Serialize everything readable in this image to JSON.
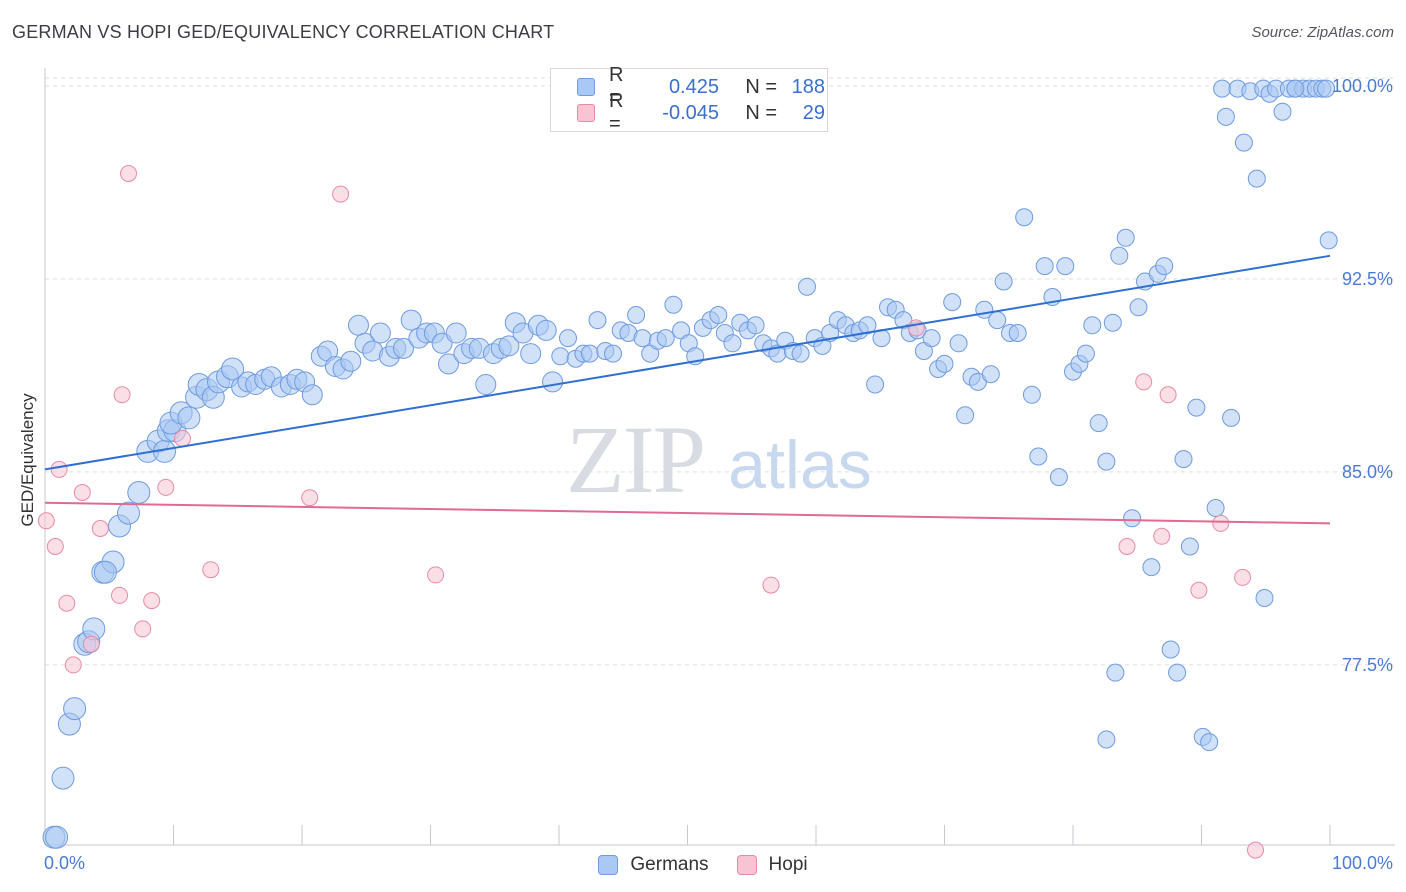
{
  "title": "GERMAN VS HOPI GED/EQUIVALENCY CORRELATION CHART",
  "source": "Source: ZipAtlas.com",
  "watermark": {
    "zip": "ZIP",
    "atlas": "atlas"
  },
  "legend_top": {
    "rows": [
      {
        "r_label": "R =",
        "r_value": "0.425",
        "n_label": "N =",
        "n_value": "188",
        "color": "#a9c8f3",
        "border": "#6f9be0"
      },
      {
        "r_label": "R =",
        "r_value": "-0.045",
        "n_label": "N =",
        "n_value": "29",
        "color": "#f7c4d3",
        "border": "#e88aa6"
      }
    ]
  },
  "legend_bottom": [
    {
      "label": "Germans",
      "color": "#a9c8f3",
      "border": "#6f9be0"
    },
    {
      "label": "Hopi",
      "color": "#f7c4d3",
      "border": "#e88aa6"
    }
  ],
  "chart_data": {
    "type": "scatter",
    "title": "GERMAN VS HOPI GED/EQUIVALENCY CORRELATION CHART",
    "xlabel": "",
    "ylabel": "GED/Equivalency",
    "xlim": [
      0,
      100
    ],
    "ylim": [
      70.5,
      100.7
    ],
    "x_tick_labels": [
      "0.0%",
      "100.0%"
    ],
    "y_ticks": [
      77.5,
      85.0,
      92.5,
      100.0
    ],
    "y_tick_labels": [
      "77.5%",
      "85.0%",
      "92.5%",
      "100.0%"
    ],
    "grid": "dashed horizontal",
    "legend_position": "top-center",
    "series": [
      {
        "name": "Germans",
        "color": "#6f9be0",
        "fill": "#a9c8f3",
        "trend": {
          "x": [
            0,
            100
          ],
          "y": [
            85.1,
            93.4
          ]
        },
        "points": [
          [
            0.7,
            70.8
          ],
          [
            0.9,
            70.8
          ],
          [
            1.4,
            73.1
          ],
          [
            1.9,
            75.2
          ],
          [
            2.3,
            75.8
          ],
          [
            3.1,
            78.3
          ],
          [
            3.4,
            78.4
          ],
          [
            3.8,
            78.9
          ],
          [
            4.5,
            81.1
          ],
          [
            5.3,
            81.5
          ],
          [
            4.7,
            81.1
          ],
          [
            5.8,
            82.9
          ],
          [
            6.5,
            83.4
          ],
          [
            7.3,
            84.2
          ],
          [
            8.0,
            85.8
          ],
          [
            8.8,
            86.2
          ],
          [
            9.3,
            85.8
          ],
          [
            9.6,
            86.6
          ],
          [
            10.1,
            86.6
          ],
          [
            9.8,
            86.9
          ],
          [
            10.6,
            87.3
          ],
          [
            11.2,
            87.1
          ],
          [
            11.8,
            87.9
          ],
          [
            12.0,
            88.4
          ],
          [
            12.6,
            88.2
          ],
          [
            13.1,
            87.9
          ],
          [
            13.5,
            88.5
          ],
          [
            14.2,
            88.7
          ],
          [
            14.6,
            89.0
          ],
          [
            15.3,
            88.3
          ],
          [
            15.8,
            88.5
          ],
          [
            16.4,
            88.4
          ],
          [
            17.1,
            88.6
          ],
          [
            17.6,
            88.7
          ],
          [
            18.4,
            88.3
          ],
          [
            19.1,
            88.4
          ],
          [
            19.6,
            88.6
          ],
          [
            20.2,
            88.5
          ],
          [
            20.8,
            88.0
          ],
          [
            21.5,
            89.5
          ],
          [
            22.0,
            89.7
          ],
          [
            22.6,
            89.1
          ],
          [
            23.2,
            89.0
          ],
          [
            23.8,
            89.3
          ],
          [
            24.4,
            90.7
          ],
          [
            24.9,
            90.0
          ],
          [
            25.5,
            89.7
          ],
          [
            26.1,
            90.4
          ],
          [
            26.8,
            89.5
          ],
          [
            27.3,
            89.8
          ],
          [
            27.9,
            89.8
          ],
          [
            28.5,
            90.9
          ],
          [
            29.1,
            90.2
          ],
          [
            29.7,
            90.4
          ],
          [
            30.3,
            90.4
          ],
          [
            30.9,
            90.0
          ],
          [
            31.4,
            89.2
          ],
          [
            32.0,
            90.4
          ],
          [
            32.6,
            89.6
          ],
          [
            33.2,
            89.8
          ],
          [
            33.8,
            89.8
          ],
          [
            34.3,
            88.4
          ],
          [
            34.9,
            89.6
          ],
          [
            35.5,
            89.8
          ],
          [
            36.1,
            89.9
          ],
          [
            36.6,
            90.8
          ],
          [
            37.2,
            90.4
          ],
          [
            37.8,
            89.6
          ],
          [
            38.4,
            90.7
          ],
          [
            39.0,
            90.5
          ],
          [
            39.5,
            88.5
          ],
          [
            40.1,
            89.5
          ],
          [
            40.7,
            90.2
          ],
          [
            41.3,
            89.4
          ],
          [
            41.9,
            89.6
          ],
          [
            42.4,
            89.6
          ],
          [
            43.0,
            90.9
          ],
          [
            43.6,
            89.7
          ],
          [
            44.2,
            89.6
          ],
          [
            44.8,
            90.5
          ],
          [
            45.4,
            90.4
          ],
          [
            46.0,
            91.1
          ],
          [
            46.5,
            90.2
          ],
          [
            47.1,
            89.6
          ],
          [
            47.7,
            90.1
          ],
          [
            48.3,
            90.2
          ],
          [
            48.9,
            91.5
          ],
          [
            49.5,
            90.5
          ],
          [
            50.1,
            90.0
          ],
          [
            50.6,
            89.5
          ],
          [
            51.2,
            90.6
          ],
          [
            51.8,
            90.9
          ],
          [
            52.4,
            91.1
          ],
          [
            52.9,
            90.4
          ],
          [
            53.5,
            90.0
          ],
          [
            54.1,
            90.8
          ],
          [
            54.7,
            90.5
          ],
          [
            55.3,
            90.7
          ],
          [
            55.9,
            90.0
          ],
          [
            56.5,
            89.8
          ],
          [
            57.0,
            89.6
          ],
          [
            57.6,
            90.1
          ],
          [
            58.2,
            89.7
          ],
          [
            58.8,
            89.6
          ],
          [
            59.3,
            92.2
          ],
          [
            59.9,
            90.2
          ],
          [
            60.5,
            89.9
          ],
          [
            61.1,
            90.4
          ],
          [
            61.7,
            90.9
          ],
          [
            62.3,
            90.7
          ],
          [
            62.9,
            90.4
          ],
          [
            63.4,
            90.5
          ],
          [
            64.0,
            90.7
          ],
          [
            64.6,
            88.4
          ],
          [
            65.1,
            90.2
          ],
          [
            65.6,
            91.4
          ],
          [
            66.2,
            91.3
          ],
          [
            66.8,
            90.9
          ],
          [
            67.3,
            90.4
          ],
          [
            67.9,
            90.5
          ],
          [
            68.4,
            89.7
          ],
          [
            69.0,
            90.2
          ],
          [
            69.5,
            89.0
          ],
          [
            70.0,
            89.2
          ],
          [
            70.6,
            91.6
          ],
          [
            71.1,
            90.0
          ],
          [
            71.6,
            87.2
          ],
          [
            72.1,
            88.7
          ],
          [
            72.6,
            88.5
          ],
          [
            73.1,
            91.3
          ],
          [
            73.6,
            88.8
          ],
          [
            74.1,
            90.9
          ],
          [
            74.6,
            92.4
          ],
          [
            75.1,
            90.4
          ],
          [
            75.7,
            90.4
          ],
          [
            76.2,
            94.9
          ],
          [
            76.8,
            88.0
          ],
          [
            77.3,
            85.6
          ],
          [
            77.8,
            93.0
          ],
          [
            78.4,
            91.8
          ],
          [
            78.9,
            84.8
          ],
          [
            79.4,
            93.0
          ],
          [
            80.0,
            88.9
          ],
          [
            80.5,
            89.2
          ],
          [
            81.0,
            89.6
          ],
          [
            81.5,
            90.7
          ],
          [
            82.0,
            86.9
          ],
          [
            82.6,
            85.4
          ],
          [
            83.1,
            90.8
          ],
          [
            83.6,
            93.4
          ],
          [
            84.1,
            94.1
          ],
          [
            84.6,
            83.2
          ],
          [
            85.1,
            91.4
          ],
          [
            85.6,
            92.4
          ],
          [
            86.1,
            81.3
          ],
          [
            86.6,
            92.7
          ],
          [
            87.1,
            93.0
          ],
          [
            87.6,
            78.1
          ],
          [
            88.1,
            77.2
          ],
          [
            88.6,
            85.5
          ],
          [
            89.1,
            82.1
          ],
          [
            89.6,
            87.5
          ],
          [
            90.1,
            74.7
          ],
          [
            90.6,
            74.5
          ],
          [
            91.1,
            83.6
          ],
          [
            91.6,
            99.9
          ],
          [
            91.9,
            98.8
          ],
          [
            92.3,
            87.1
          ],
          [
            92.8,
            99.9
          ],
          [
            93.3,
            97.8
          ],
          [
            93.8,
            99.8
          ],
          [
            94.3,
            96.4
          ],
          [
            94.8,
            99.9
          ],
          [
            95.3,
            99.7
          ],
          [
            95.8,
            99.9
          ],
          [
            96.3,
            99.0
          ],
          [
            96.8,
            99.9
          ],
          [
            97.3,
            99.9
          ],
          [
            97.9,
            99.9
          ],
          [
            98.4,
            99.9
          ],
          [
            98.9,
            99.9
          ],
          [
            99.4,
            99.9
          ],
          [
            99.7,
            99.9
          ],
          [
            99.9,
            94.0
          ],
          [
            94.9,
            80.1
          ],
          [
            82.6,
            74.6
          ],
          [
            83.3,
            77.2
          ],
          [
            97.3,
            99.9
          ]
        ]
      },
      {
        "name": "Hopi",
        "color": "#e88aa6",
        "fill": "#f7c4d3",
        "trend": {
          "x": [
            0,
            100
          ],
          "y": [
            83.8,
            83.0
          ]
        },
        "points": [
          [
            0.1,
            83.1
          ],
          [
            0.8,
            82.1
          ],
          [
            1.1,
            85.1
          ],
          [
            1.7,
            79.9
          ],
          [
            2.2,
            77.5
          ],
          [
            2.9,
            84.2
          ],
          [
            3.6,
            78.3
          ],
          [
            4.3,
            82.8
          ],
          [
            5.8,
            80.2
          ],
          [
            6.0,
            88.0
          ],
          [
            6.5,
            96.6
          ],
          [
            7.6,
            78.9
          ],
          [
            8.3,
            80.0
          ],
          [
            9.4,
            84.4
          ],
          [
            10.7,
            86.3
          ],
          [
            12.9,
            81.2
          ],
          [
            20.6,
            84.0
          ],
          [
            23.0,
            95.8
          ],
          [
            30.4,
            81.0
          ],
          [
            56.5,
            80.6
          ],
          [
            67.8,
            90.6
          ],
          [
            84.2,
            82.1
          ],
          [
            85.5,
            88.5
          ],
          [
            86.9,
            82.5
          ],
          [
            87.4,
            88.0
          ],
          [
            89.8,
            80.4
          ],
          [
            91.5,
            83.0
          ],
          [
            93.2,
            80.9
          ],
          [
            94.2,
            70.3
          ]
        ]
      }
    ]
  }
}
